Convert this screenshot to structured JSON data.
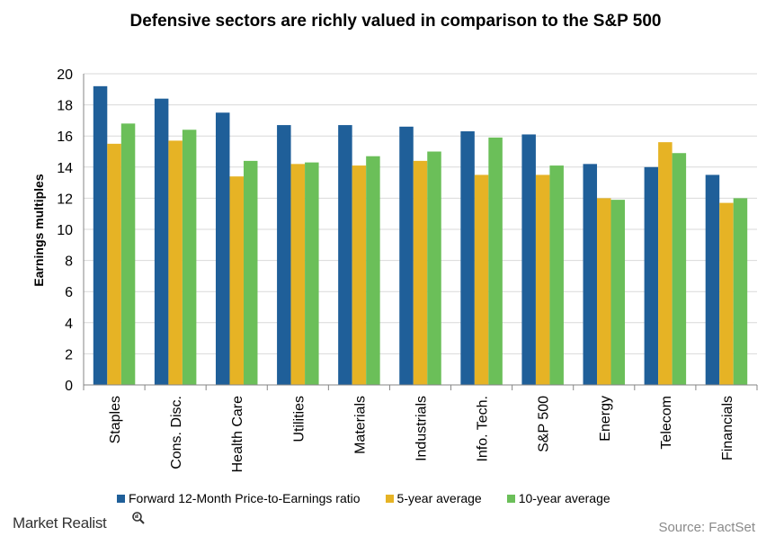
{
  "chart_data": {
    "type": "bar",
    "title": "Defensive sectors are richly valued in comparison to the S&P 500",
    "ylabel": "Earnings multiples",
    "xlabel": "",
    "ylim": [
      0,
      20
    ],
    "yticks": [
      0,
      2,
      4,
      6,
      8,
      10,
      12,
      14,
      16,
      18,
      20
    ],
    "grid": true,
    "legend_position": "bottom",
    "categories": [
      "Staples",
      "Cons. Disc.",
      "Health Care",
      "Utilities",
      "Materials",
      "Industrials",
      "Info. Tech.",
      "S&P 500",
      "Energy",
      "Telecom",
      "Financials"
    ],
    "series": [
      {
        "name": "Forward 12-Month Price-to-Earnings ratio",
        "color": "#1f5f99",
        "values": [
          19.2,
          18.4,
          17.5,
          16.7,
          16.7,
          16.6,
          16.3,
          16.1,
          14.2,
          14.0,
          13.5
        ]
      },
      {
        "name": "5-year average",
        "color": "#e6b325",
        "values": [
          15.5,
          15.7,
          13.4,
          14.2,
          14.1,
          14.4,
          13.5,
          13.5,
          12.0,
          15.6,
          11.7
        ]
      },
      {
        "name": "10-year average",
        "color": "#6bbf59",
        "values": [
          16.8,
          16.4,
          14.4,
          14.3,
          14.7,
          15.0,
          15.9,
          14.1,
          11.9,
          14.9,
          12.0
        ]
      }
    ]
  },
  "footer": {
    "brand": "Market Realist",
    "brand_icon": "magnifier-icon",
    "source": "Source: FactSet"
  }
}
